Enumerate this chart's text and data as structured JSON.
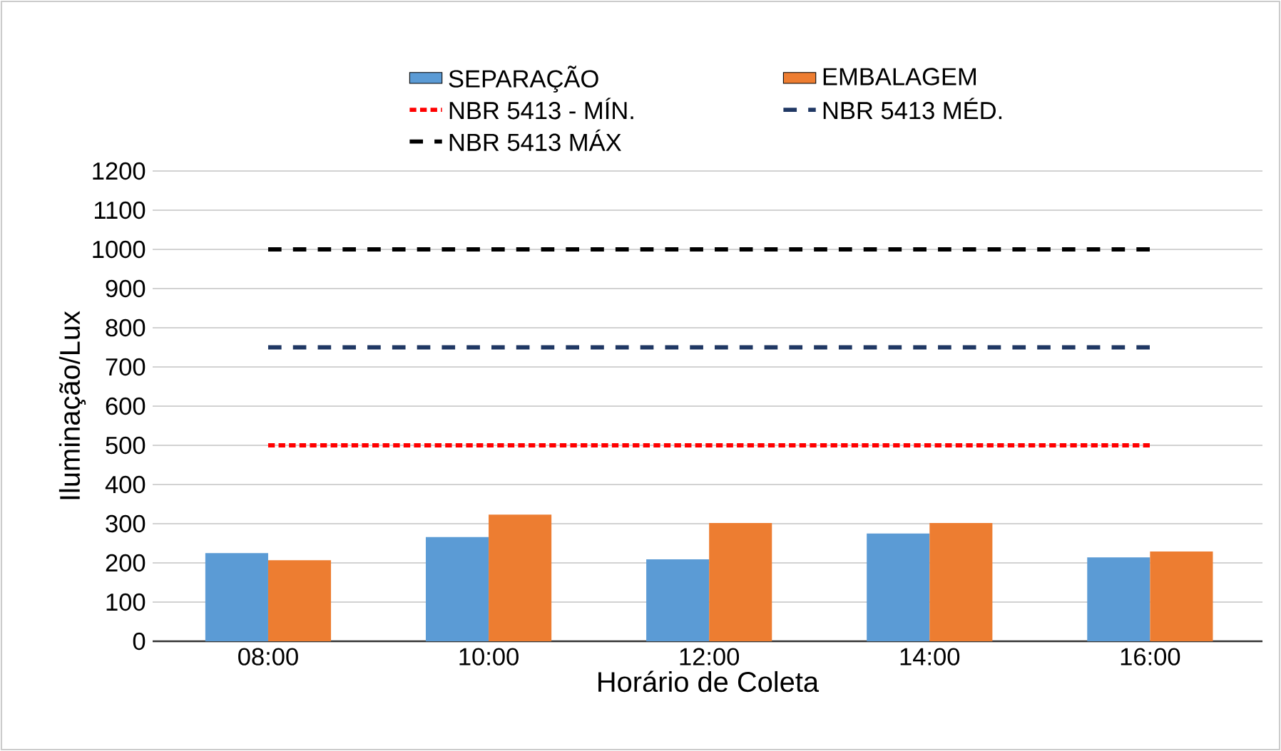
{
  "chart_data": {
    "type": "bar",
    "xlabel": "Horário de Coleta",
    "ylabel": "Iluminação/Lux",
    "categories": [
      "08:00",
      "10:00",
      "12:00",
      "14:00",
      "16:00"
    ],
    "series": [
      {
        "name": "SEPARAÇÃO",
        "color": "#5b9bd5",
        "values": [
          225,
          266,
          209,
          275,
          214
        ]
      },
      {
        "name": "EMBALAGEM",
        "color": "#ed7d31",
        "values": [
          207,
          323,
          302,
          302,
          229
        ]
      },
      {
        "name": "NBR 5413 - MÍN.",
        "type": "line",
        "line_style": "dotted",
        "color": "#ff0000",
        "values": [
          500,
          500,
          500,
          500,
          500
        ]
      },
      {
        "name": "NBR 5413 MÉD.",
        "type": "line",
        "line_style": "dashed",
        "color": "#203864",
        "values": [
          750,
          750,
          750,
          750,
          750
        ]
      },
      {
        "name": "NBR 5413 MÁX",
        "type": "line",
        "line_style": "dashed",
        "color": "#000000",
        "values": [
          1000,
          1000,
          1000,
          1000,
          1000
        ]
      }
    ],
    "ylim": [
      0,
      1200
    ],
    "yticks": [
      0,
      100,
      200,
      300,
      400,
      500,
      600,
      700,
      800,
      900,
      1000,
      1100,
      1200
    ],
    "grid": "y",
    "legend": "top",
    "marker": "none"
  }
}
